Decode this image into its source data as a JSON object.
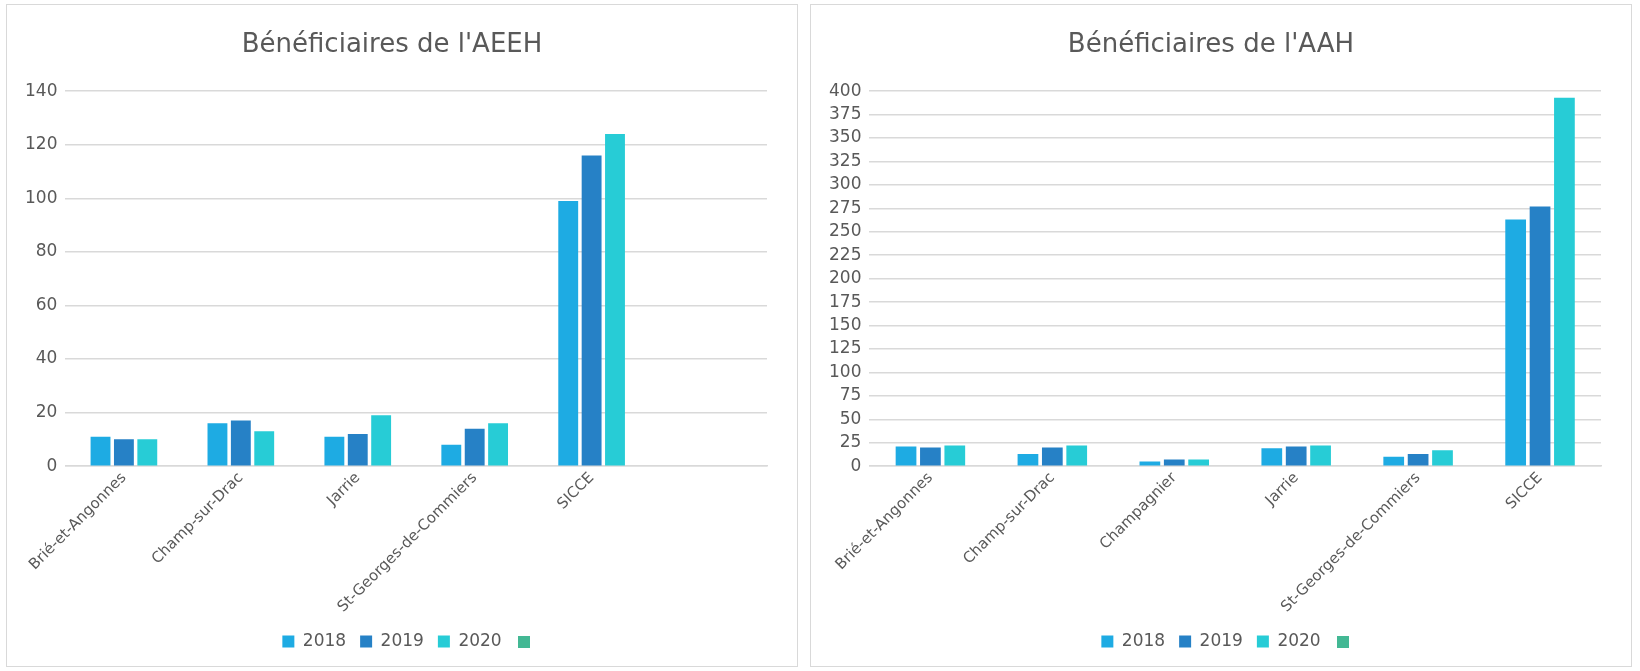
{
  "chart_data": [
    {
      "type": "bar",
      "title": "Bénéficiaires de l'AEEH",
      "categories": [
        "Brié-et-Angonnes",
        "Champ-sur-Drac",
        "Jarrie",
        "St-Georges-de-Commiers",
        "SICCE",
        null
      ],
      "series": [
        {
          "name": "2018",
          "color": "#1eabe3",
          "values": [
            11,
            16,
            11,
            8,
            99,
            null
          ]
        },
        {
          "name": "2019",
          "color": "#2681c6",
          "values": [
            10,
            17,
            12,
            14,
            116,
            null
          ]
        },
        {
          "name": "2020",
          "color": "#27ccd6",
          "values": [
            10,
            13,
            19,
            16,
            124,
            null
          ]
        }
      ],
      "ylim": [
        0,
        140
      ],
      "yticks": [
        0,
        20,
        40,
        60,
        80,
        100,
        120,
        140
      ],
      "grid": "y",
      "legend": "bottom"
    },
    {
      "type": "bar",
      "title": "Bénéficiaires de l'AAH",
      "categories": [
        "Brié-et-Angonnes",
        "Champ-sur-Drac",
        "Champagnier",
        "Jarrie",
        "St-Georges-de-Commiers",
        "SICCE"
      ],
      "series": [
        {
          "name": "2018",
          "color": "#1eabe3",
          "values": [
            21,
            13,
            5,
            19,
            10,
            263
          ]
        },
        {
          "name": "2019",
          "color": "#2681c6",
          "values": [
            20,
            20,
            7,
            21,
            13,
            277
          ]
        },
        {
          "name": "2020",
          "color": "#27ccd6",
          "values": [
            22,
            22,
            7,
            22,
            17,
            393
          ]
        }
      ],
      "ylim": [
        0,
        400
      ],
      "yticks": [
        0,
        25,
        50,
        75,
        100,
        125,
        150,
        175,
        200,
        225,
        250,
        275,
        300,
        325,
        350,
        375,
        400
      ],
      "grid": "y",
      "legend": "bottom"
    }
  ]
}
